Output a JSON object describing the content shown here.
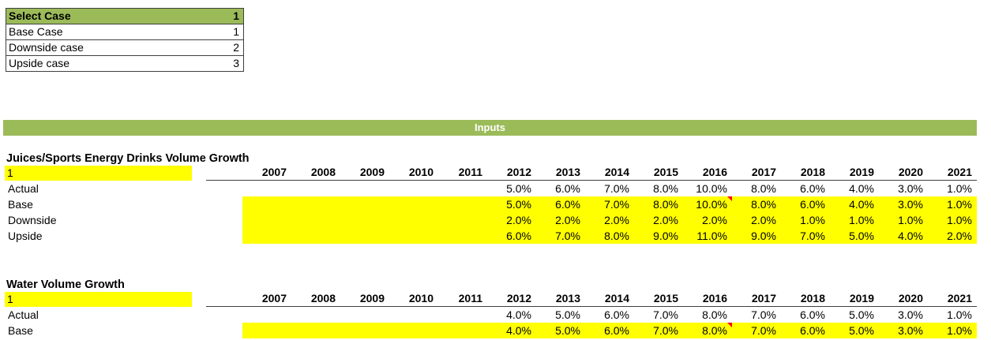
{
  "colors": {
    "accent_green": "#9bbb59",
    "highlight_yellow": "#ffff00",
    "comment_red": "#ff0000",
    "border_gray": "#3f3f3f"
  },
  "case_selector": {
    "header_label": "Select Case",
    "header_value": "1",
    "options": [
      {
        "label": "Base Case",
        "value": "1"
      },
      {
        "label": "Downside case",
        "value": "2"
      },
      {
        "label": "Upside case",
        "value": "3"
      }
    ]
  },
  "banner": {
    "title": "Inputs"
  },
  "years": [
    "2007",
    "2008",
    "2009",
    "2010",
    "2011",
    "2012",
    "2013",
    "2014",
    "2015",
    "2016",
    "2017",
    "2018",
    "2019",
    "2020",
    "2021"
  ],
  "sections": [
    {
      "title": "Juices/Sports Energy Drinks Volume Growth",
      "selected_case": "1",
      "rows": [
        {
          "label": "Actual",
          "highlighted": false,
          "comment_year": null,
          "values": [
            "",
            "",
            "",
            "",
            "",
            "5.0%",
            "6.0%",
            "7.0%",
            "8.0%",
            "10.0%",
            "8.0%",
            "6.0%",
            "4.0%",
            "3.0%",
            "1.0%"
          ]
        },
        {
          "label": "Base",
          "highlighted": true,
          "comment_year": "2016",
          "values": [
            "",
            "",
            "",
            "",
            "",
            "5.0%",
            "6.0%",
            "7.0%",
            "8.0%",
            "10.0%",
            "8.0%",
            "6.0%",
            "4.0%",
            "3.0%",
            "1.0%"
          ]
        },
        {
          "label": "Downside",
          "highlighted": true,
          "comment_year": null,
          "values": [
            "",
            "",
            "",
            "",
            "",
            "2.0%",
            "2.0%",
            "2.0%",
            "2.0%",
            "2.0%",
            "2.0%",
            "1.0%",
            "1.0%",
            "1.0%",
            "1.0%"
          ]
        },
        {
          "label": "Upside",
          "highlighted": true,
          "comment_year": null,
          "values": [
            "",
            "",
            "",
            "",
            "",
            "6.0%",
            "7.0%",
            "8.0%",
            "9.0%",
            "11.0%",
            "9.0%",
            "7.0%",
            "5.0%",
            "4.0%",
            "2.0%"
          ]
        }
      ]
    },
    {
      "title": "Water Volume Growth",
      "selected_case": "1",
      "rows": [
        {
          "label": "Actual",
          "highlighted": false,
          "comment_year": null,
          "values": [
            "",
            "",
            "",
            "",
            "",
            "4.0%",
            "5.0%",
            "6.0%",
            "7.0%",
            "8.0%",
            "7.0%",
            "6.0%",
            "5.0%",
            "3.0%",
            "1.0%"
          ]
        },
        {
          "label": "Base",
          "highlighted": true,
          "comment_year": "2016",
          "values": [
            "",
            "",
            "",
            "",
            "",
            "4.0%",
            "5.0%",
            "6.0%",
            "7.0%",
            "8.0%",
            "7.0%",
            "6.0%",
            "5.0%",
            "3.0%",
            "1.0%"
          ]
        }
      ]
    }
  ]
}
